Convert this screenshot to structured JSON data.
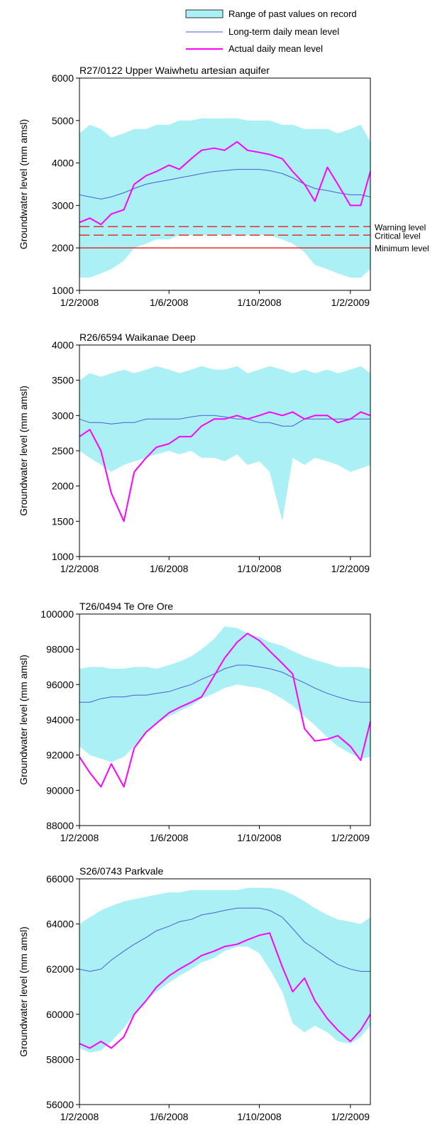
{
  "legend": {
    "range_label": "Range of past values on record",
    "mean_label": "Long-term daily mean level",
    "actual_label": "Actual daily mean level"
  },
  "colors": {
    "range": "#aaf0f4",
    "mean": "#4a5ed6",
    "actual": "#ff00ff",
    "threshold": "#e03030"
  },
  "chart_data": [
    {
      "type": "area",
      "title": "R27/0122 Upper Waiwhetu artesian aquifer",
      "ylabel": "Groundwater level (mm amsl)",
      "xlabel": "",
      "xlim": [
        "2008-02-01",
        "2009-02-28"
      ],
      "ylim": [
        1000,
        6000
      ],
      "yticks": [
        1000,
        2000,
        3000,
        4000,
        5000,
        6000
      ],
      "xtick_labels": [
        "1/2/2008",
        "1/6/2008",
        "1/10/2008",
        "1/2/2009"
      ],
      "xtick_dates": [
        "2008-02-01",
        "2008-06-01",
        "2008-10-01",
        "2009-02-01"
      ],
      "thresholds": [
        {
          "label": "Warning level",
          "value": 2500,
          "style": "dashed"
        },
        {
          "label": "Critical level",
          "value": 2300,
          "style": "dashed"
        },
        {
          "label": "Minimum level",
          "value": 2000,
          "style": "solid"
        }
      ],
      "dates": [
        "2008-02-01",
        "2008-02-15",
        "2008-03-01",
        "2008-03-15",
        "2008-04-01",
        "2008-04-15",
        "2008-05-01",
        "2008-05-15",
        "2008-06-01",
        "2008-06-15",
        "2008-07-01",
        "2008-07-15",
        "2008-08-01",
        "2008-08-15",
        "2008-09-01",
        "2008-09-15",
        "2008-10-01",
        "2008-10-15",
        "2008-11-01",
        "2008-11-15",
        "2008-12-01",
        "2008-12-15",
        "2009-01-01",
        "2009-01-15",
        "2009-02-01",
        "2009-02-15",
        "2009-02-28"
      ],
      "series": [
        {
          "kind": "range-upper",
          "values": [
            4700,
            4900,
            4800,
            4600,
            4700,
            4800,
            4800,
            4900,
            4900,
            5000,
            5000,
            5050,
            5050,
            5050,
            5050,
            5000,
            5000,
            5000,
            4900,
            4900,
            4800,
            4800,
            4800,
            4700,
            4800,
            4900,
            4500
          ]
        },
        {
          "kind": "range-lower",
          "values": [
            1300,
            1300,
            1400,
            1500,
            1700,
            2000,
            2100,
            2200,
            2200,
            2300,
            2300,
            2300,
            2300,
            2300,
            2300,
            2300,
            2300,
            2300,
            2200,
            2100,
            1900,
            1600,
            1500,
            1400,
            1300,
            1300,
            1500
          ]
        },
        {
          "name": "Long-term daily mean level",
          "kind": "mean",
          "values": [
            3250,
            3200,
            3150,
            3200,
            3300,
            3400,
            3500,
            3550,
            3600,
            3650,
            3700,
            3750,
            3800,
            3820,
            3850,
            3850,
            3850,
            3820,
            3750,
            3650,
            3500,
            3400,
            3350,
            3300,
            3250,
            3250,
            3200
          ]
        },
        {
          "name": "Actual daily mean level",
          "kind": "actual",
          "values": [
            2600,
            2700,
            2550,
            2800,
            2900,
            3500,
            3700,
            3800,
            3950,
            3850,
            4100,
            4300,
            4350,
            4300,
            4500,
            4300,
            4250,
            4200,
            4100,
            3800,
            3500,
            3100,
            3900,
            3500,
            3000,
            3000,
            3800
          ]
        }
      ]
    },
    {
      "type": "area",
      "title": "R26/6594 Waikanae Deep",
      "ylabel": "Groundwater level (mm amsl)",
      "xlabel": "",
      "xlim": [
        "2008-02-01",
        "2009-02-28"
      ],
      "ylim": [
        1000,
        4000
      ],
      "yticks": [
        1000,
        1500,
        2000,
        2500,
        3000,
        3500,
        4000
      ],
      "xtick_labels": [
        "1/2/2008",
        "1/6/2008",
        "1/10/2008",
        "1/2/2009"
      ],
      "xtick_dates": [
        "2008-02-01",
        "2008-06-01",
        "2008-10-01",
        "2009-02-01"
      ],
      "thresholds": [],
      "dates": [
        "2008-02-01",
        "2008-02-15",
        "2008-03-01",
        "2008-03-15",
        "2008-04-01",
        "2008-04-15",
        "2008-05-01",
        "2008-05-15",
        "2008-06-01",
        "2008-06-15",
        "2008-07-01",
        "2008-07-15",
        "2008-08-01",
        "2008-08-15",
        "2008-09-01",
        "2008-09-15",
        "2008-10-01",
        "2008-10-15",
        "2008-11-01",
        "2008-11-15",
        "2008-12-01",
        "2008-12-15",
        "2009-01-01",
        "2009-01-15",
        "2009-02-01",
        "2009-02-15",
        "2009-02-28"
      ],
      "series": [
        {
          "kind": "range-upper",
          "values": [
            3500,
            3600,
            3550,
            3600,
            3650,
            3600,
            3650,
            3700,
            3650,
            3600,
            3650,
            3700,
            3650,
            3650,
            3700,
            3600,
            3650,
            3700,
            3650,
            3600,
            3650,
            3600,
            3650,
            3600,
            3650,
            3700,
            3600
          ]
        },
        {
          "kind": "range-lower",
          "values": [
            2500,
            2400,
            2300,
            2200,
            2300,
            2350,
            2400,
            2450,
            2500,
            2450,
            2500,
            2400,
            2400,
            2350,
            2450,
            2300,
            2350,
            2200,
            1500,
            2400,
            2300,
            2400,
            2350,
            2300,
            2200,
            2250,
            2300
          ]
        },
        {
          "name": "Long-term daily mean level",
          "kind": "mean",
          "values": [
            2950,
            2900,
            2900,
            2880,
            2900,
            2900,
            2950,
            2950,
            2950,
            2950,
            2980,
            3000,
            3000,
            2980,
            2950,
            2950,
            2900,
            2900,
            2850,
            2850,
            2950,
            2950,
            2950,
            2950,
            2950,
            2950,
            2950
          ]
        },
        {
          "name": "Actual daily mean level",
          "kind": "actual",
          "values": [
            2700,
            2800,
            2500,
            1900,
            1500,
            2200,
            2400,
            2550,
            2600,
            2700,
            2700,
            2850,
            2950,
            2950,
            3000,
            2950,
            3000,
            3050,
            3000,
            3050,
            2950,
            3000,
            3000,
            2900,
            2950,
            3050,
            3000
          ]
        }
      ]
    },
    {
      "type": "area",
      "title": "T26/0494 Te Ore Ore",
      "ylabel": "Groundwater level (mm amsl)",
      "xlabel": "",
      "xlim": [
        "2008-02-01",
        "2009-02-28"
      ],
      "ylim": [
        88000,
        100000
      ],
      "yticks": [
        88000,
        90000,
        92000,
        94000,
        96000,
        98000,
        100000
      ],
      "xtick_labels": [
        "1/2/2008",
        "1/6/2008",
        "1/10/2008",
        "1/2/2009"
      ],
      "xtick_dates": [
        "2008-02-01",
        "2008-06-01",
        "2008-10-01",
        "2009-02-01"
      ],
      "thresholds": [],
      "dates": [
        "2008-02-01",
        "2008-02-15",
        "2008-03-01",
        "2008-03-15",
        "2008-04-01",
        "2008-04-15",
        "2008-05-01",
        "2008-05-15",
        "2008-06-01",
        "2008-06-15",
        "2008-07-01",
        "2008-07-15",
        "2008-08-01",
        "2008-08-15",
        "2008-09-01",
        "2008-09-15",
        "2008-10-01",
        "2008-10-15",
        "2008-11-01",
        "2008-11-15",
        "2008-12-01",
        "2008-12-15",
        "2009-01-01",
        "2009-01-15",
        "2009-02-01",
        "2009-02-15",
        "2009-02-28"
      ],
      "series": [
        {
          "kind": "range-upper",
          "values": [
            96900,
            97000,
            97000,
            96900,
            96900,
            97000,
            97000,
            96900,
            97100,
            97300,
            97600,
            98000,
            98600,
            99300,
            99200,
            98900,
            98700,
            98400,
            98200,
            97900,
            97600,
            97400,
            97200,
            97000,
            97000,
            97000,
            96900
          ]
        },
        {
          "kind": "range-lower",
          "values": [
            92500,
            92000,
            91800,
            91600,
            91900,
            92500,
            93300,
            93800,
            94200,
            94500,
            94800,
            95200,
            95500,
            95800,
            96000,
            95900,
            95800,
            95600,
            95200,
            94800,
            94200,
            93700,
            93000,
            92500,
            92100,
            91800,
            91900
          ]
        },
        {
          "name": "Long-term daily mean level",
          "kind": "mean",
          "values": [
            95000,
            95000,
            95200,
            95300,
            95300,
            95400,
            95400,
            95500,
            95600,
            95800,
            96000,
            96300,
            96600,
            96900,
            97100,
            97100,
            97000,
            96900,
            96700,
            96400,
            96100,
            95800,
            95500,
            95300,
            95100,
            95000,
            95000
          ]
        },
        {
          "name": "Actual daily mean level",
          "kind": "actual",
          "values": [
            91900,
            91000,
            90200,
            91500,
            90200,
            92400,
            93300,
            93800,
            94400,
            94700,
            95000,
            95300,
            96500,
            97500,
            98400,
            98900,
            98500,
            97900,
            97200,
            96600,
            93500,
            92800,
            92900,
            93100,
            92500,
            91700,
            93900
          ]
        }
      ]
    },
    {
      "type": "area",
      "title": "S26/0743 Parkvale",
      "ylabel": "Groundwater level (mm amsl)",
      "xlabel": "",
      "xlim": [
        "2008-02-01",
        "2009-02-28"
      ],
      "ylim": [
        56000,
        66000
      ],
      "yticks": [
        56000,
        58000,
        60000,
        62000,
        64000,
        66000
      ],
      "xtick_labels": [
        "1/2/2008",
        "1/6/2008",
        "1/10/2008",
        "1/2/2009"
      ],
      "xtick_dates": [
        "2008-02-01",
        "2008-06-01",
        "2008-10-01",
        "2009-02-01"
      ],
      "thresholds": [],
      "dates": [
        "2008-02-01",
        "2008-02-15",
        "2008-03-01",
        "2008-03-15",
        "2008-04-01",
        "2008-04-15",
        "2008-05-01",
        "2008-05-15",
        "2008-06-01",
        "2008-06-15",
        "2008-07-01",
        "2008-07-15",
        "2008-08-01",
        "2008-08-15",
        "2008-09-01",
        "2008-09-15",
        "2008-10-01",
        "2008-10-15",
        "2008-11-01",
        "2008-11-15",
        "2008-12-01",
        "2008-12-15",
        "2009-01-01",
        "2009-01-15",
        "2009-02-01",
        "2009-02-15",
        "2009-02-28"
      ],
      "series": [
        {
          "kind": "range-upper",
          "values": [
            64000,
            64300,
            64600,
            64800,
            65000,
            65100,
            65200,
            65300,
            65400,
            65400,
            65500,
            65500,
            65500,
            65500,
            65500,
            65600,
            65600,
            65600,
            65500,
            65300,
            65000,
            64700,
            64400,
            64200,
            64100,
            64000,
            64300
          ]
        },
        {
          "kind": "range-lower",
          "values": [
            58500,
            58300,
            58400,
            58800,
            59400,
            60000,
            60600,
            61000,
            61400,
            61700,
            62000,
            62300,
            62500,
            62800,
            63000,
            63000,
            62700,
            62000,
            61000,
            59600,
            59200,
            59500,
            59200,
            58800,
            58700,
            59000,
            59500
          ]
        },
        {
          "name": "Long-term daily mean level",
          "kind": "mean",
          "values": [
            62000,
            61900,
            62000,
            62400,
            62800,
            63100,
            63400,
            63700,
            63900,
            64100,
            64200,
            64400,
            64500,
            64600,
            64700,
            64700,
            64700,
            64600,
            64300,
            63800,
            63200,
            62900,
            62500,
            62200,
            62000,
            61900,
            61900
          ]
        },
        {
          "name": "Actual daily mean level",
          "kind": "actual",
          "values": [
            58700,
            58500,
            58800,
            58500,
            59000,
            60000,
            60600,
            61200,
            61700,
            62000,
            62300,
            62600,
            62800,
            63000,
            63100,
            63300,
            63500,
            63600,
            62100,
            61000,
            61600,
            60600,
            59800,
            59300,
            58800,
            59300,
            60000
          ]
        }
      ]
    }
  ]
}
